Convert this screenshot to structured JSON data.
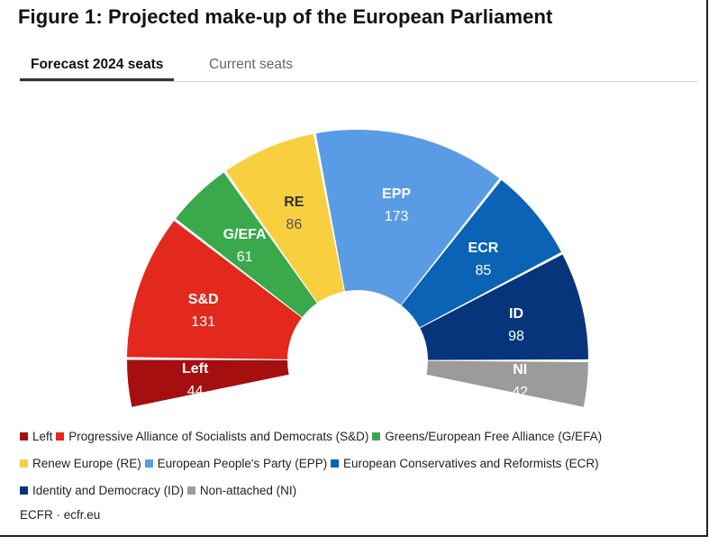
{
  "title": "Figure 1: Projected make-up of the European Parliament",
  "tabs": [
    {
      "label": "Forecast 2024 seats",
      "active": true
    },
    {
      "label": "Current seats",
      "active": false
    }
  ],
  "chart_data": {
    "type": "pie",
    "subtype": "parliament-semicircle",
    "categories": [
      "Left",
      "S&D",
      "G/EFA",
      "RE",
      "EPP",
      "ECR",
      "ID",
      "NI"
    ],
    "values": [
      44,
      131,
      61,
      86,
      173,
      85,
      98,
      42
    ],
    "colors": [
      "#a50f0f",
      "#e3281e",
      "#3aa94c",
      "#f7cf3f",
      "#5a9be6",
      "#0a63b5",
      "#07357b",
      "#9b9b9b"
    ],
    "legend": [
      {
        "label": "Left",
        "color": "#a50f0f"
      },
      {
        "label": "Progressive Alliance of Socialists and Democrats (S&D)",
        "color": "#e3281e"
      },
      {
        "label": "Greens/European Free Alliance (G/EFA)",
        "color": "#3aa94c"
      },
      {
        "label": "Renew Europe (RE)",
        "color": "#f7cf3f"
      },
      {
        "label": "European People's Party (EPP)",
        "color": "#5a9be6"
      },
      {
        "label": "European Conservatives and Reformists (ECR)",
        "color": "#0a63b5"
      },
      {
        "label": "Identity and Democracy (ID)",
        "color": "#07357b"
      },
      {
        "label": "Non-attached (NI)",
        "color": "#9b9b9b"
      }
    ],
    "legend_position": "bottom"
  },
  "source": "ECFR · ecfr.eu"
}
